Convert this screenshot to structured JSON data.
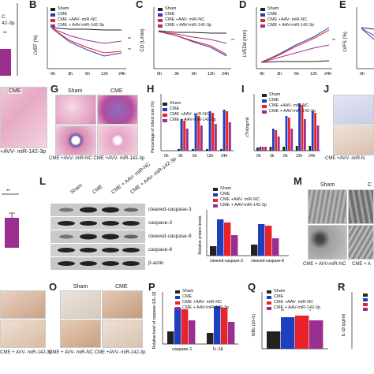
{
  "panels": {
    "B": "B",
    "C": "C",
    "D": "D",
    "E": "E",
    "G": "G",
    "H": "H",
    "I": "I",
    "J": "J",
    "L": "L",
    "M": "M",
    "O": "O",
    "P": "P",
    "Q": "Q",
    "R": "R"
  },
  "groups": {
    "sham": "Sham",
    "cme": "CME",
    "cme_nc": "CME +AAV- miR-NC",
    "cme_142": "CME + AAV-miR-142-3p"
  },
  "colors": {
    "sham": "#222222",
    "cme": "#1f3fbf",
    "nc": "#e8242a",
    "mir142": "#9b2f8f"
  },
  "top_axes": {
    "b_ylabel": "LVEF (%)",
    "c_ylabel": "CO (L/min)",
    "d_ylabel": "LVEDd (mm)",
    "e_ylabel": "LVFS (%)",
    "times": [
      "0h",
      "3h",
      "6h",
      "12h",
      "24h"
    ],
    "left_fragment": "C",
    "left_fragment2": "42-3p"
  },
  "fragments": {
    "a_label": "CME",
    "a_bottom": "+AVV- miR-142-3p",
    "g_sham": "Sham",
    "g_cme": "CME",
    "g_bottom": "CME +AVV- miR-NC  CME +AVV- miR-142-3p",
    "j_bottom": "CME +AVV- miR-N",
    "m_sham": "Sham",
    "m_c": "C",
    "m_bottom": "CME + AVV-miR-NC",
    "m_bottom2": "CME + A",
    "n_bottom": "CME + AVV- miR-142-3p",
    "o_sham": "Sham",
    "o_cme": "CME",
    "o_bottom": "CME + AVV- miR-NC  CME +AVV- miR-142-3p",
    "k_mark": "**"
  },
  "panel_h": {
    "ylabel": "Percentage of infarct size (%)",
    "times": [
      "0h",
      "3h",
      "6h",
      "12h",
      "24h"
    ]
  },
  "panel_i": {
    "ylabel": "cTnI(ng/ml)",
    "times": [
      "0h",
      "3h",
      "6h",
      "12h",
      "24h"
    ]
  },
  "panel_l": {
    "lanes": [
      "Sham",
      "CME",
      "CME + AAV- miR-NC",
      "CME + AAV- miR-142-3p"
    ],
    "bands": [
      "cleaved-caspase-3",
      "caspase-3",
      "cleaved-caspase-8",
      "caspase-8",
      "β-actin"
    ],
    "ylabel": "Relative protein levels",
    "xcats": [
      "cleaved-caspase-3",
      "cleaved-caspase-8"
    ]
  },
  "panel_p": {
    "ylabel": "Relative level of caspase-1/IL-1β",
    "xcats": [
      "caspase-1",
      "IL-1β"
    ]
  },
  "panel_q": {
    "ylabel": "WBC (10⁹/L)"
  },
  "panel_r": {
    "ylabel": "IL-1β (pg/ml)"
  }
}
